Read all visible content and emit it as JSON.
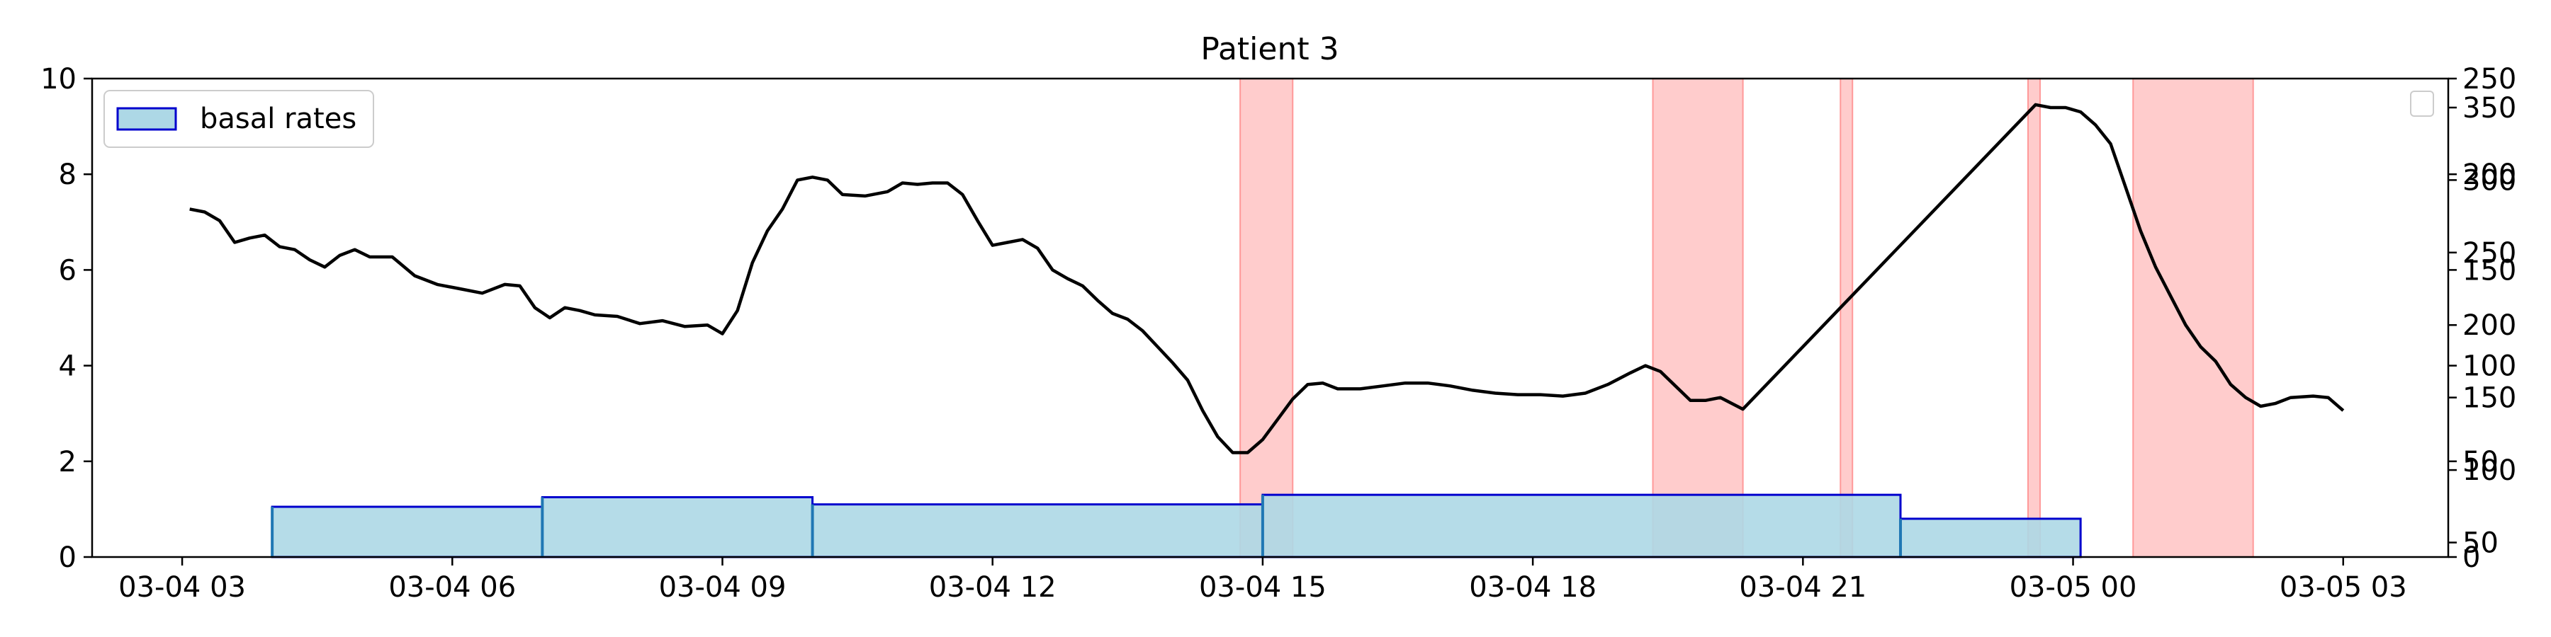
{
  "chart_data": {
    "type": "line",
    "title": "Patient 3",
    "x_range": [
      "2024-03-04 02:00",
      "2024-03-05 04:10"
    ],
    "x_ticks": [
      {
        "value": "2024-03-04 03:00",
        "label": "03-04 03"
      },
      {
        "value": "2024-03-04 06:00",
        "label": "03-04 06"
      },
      {
        "value": "2024-03-04 09:00",
        "label": "03-04 09"
      },
      {
        "value": "2024-03-04 12:00",
        "label": "03-04 12"
      },
      {
        "value": "2024-03-04 15:00",
        "label": "03-04 15"
      },
      {
        "value": "2024-03-04 18:00",
        "label": "03-04 18"
      },
      {
        "value": "2024-03-04 21:00",
        "label": "03-04 21"
      },
      {
        "value": "2024-03-05 00:00",
        "label": "03-05 00"
      },
      {
        "value": "2024-03-05 03:00",
        "label": "03-05 03"
      }
    ],
    "left_axis": {
      "ylim": [
        0,
        10
      ],
      "ticks": [
        "0",
        "2",
        "4",
        "6",
        "8",
        "10"
      ]
    },
    "right_axis_a": {
      "ylim": [
        0,
        250
      ],
      "ticks": [
        "0",
        "50",
        "100",
        "150",
        "200",
        "250"
      ]
    },
    "right_axis_b": {
      "ylim": [
        40,
        370
      ],
      "ticks": [
        "50",
        "100",
        "150",
        "200",
        "250",
        "300",
        "350"
      ]
    },
    "legend": {
      "placement": "upper-left",
      "entries": [
        "basal rates"
      ]
    },
    "empty_legend_placement": "upper-right",
    "colors": {
      "basal_fill": "#add8e6",
      "basal_edge": "#0000cd",
      "basal_step": "#1f77b4",
      "highlight": "#ff9999",
      "glucose": "#000000"
    },
    "basal_rates": [
      {
        "start": "2024-03-04 04:00",
        "end": "2024-03-04 07:00",
        "value": 1.05
      },
      {
        "start": "2024-03-04 07:00",
        "end": "2024-03-04 10:00",
        "value": 1.25
      },
      {
        "start": "2024-03-04 10:00",
        "end": "2024-03-04 15:00",
        "value": 1.1
      },
      {
        "start": "2024-03-04 15:00",
        "end": "2024-03-04 22:05",
        "value": 1.3
      },
      {
        "start": "2024-03-04 22:05",
        "end": "2024-03-05 00:05",
        "value": 0.8
      }
    ],
    "highlight_regions": [
      {
        "start": "2024-03-04 14:45",
        "end": "2024-03-04 15:20"
      },
      {
        "start": "2024-03-04 19:20",
        "end": "2024-03-04 20:20"
      },
      {
        "start": "2024-03-04 21:25",
        "end": "2024-03-04 21:33"
      },
      {
        "start": "2024-03-04 23:30",
        "end": "2024-03-04 23:38"
      },
      {
        "start": "2024-03-05 00:40",
        "end": "2024-03-05 02:00"
      }
    ],
    "glucose_series": {
      "points": [
        [
          "2024-03-04 03:05",
          280
        ],
        [
          "2024-03-04 03:15",
          278
        ],
        [
          "2024-03-04 03:25",
          272
        ],
        [
          "2024-03-04 03:35",
          257
        ],
        [
          "2024-03-04 03:45",
          260
        ],
        [
          "2024-03-04 03:55",
          262
        ],
        [
          "2024-03-04 04:05",
          254
        ],
        [
          "2024-03-04 04:15",
          252
        ],
        [
          "2024-03-04 04:25",
          245
        ],
        [
          "2024-03-04 04:35",
          240
        ],
        [
          "2024-03-04 04:45",
          248
        ],
        [
          "2024-03-04 04:55",
          252
        ],
        [
          "2024-03-04 05:05",
          247
        ],
        [
          "2024-03-04 05:20",
          247
        ],
        [
          "2024-03-04 05:35",
          234
        ],
        [
          "2024-03-04 05:50",
          228
        ],
        [
          "2024-03-04 06:05",
          225
        ],
        [
          "2024-03-04 06:20",
          222
        ],
        [
          "2024-03-04 06:35",
          228
        ],
        [
          "2024-03-04 06:45",
          227
        ],
        [
          "2024-03-04 06:55",
          212
        ],
        [
          "2024-03-04 07:05",
          205
        ],
        [
          "2024-03-04 07:15",
          212
        ],
        [
          "2024-03-04 07:25",
          210
        ],
        [
          "2024-03-04 07:35",
          207
        ],
        [
          "2024-03-04 07:50",
          206
        ],
        [
          "2024-03-04 08:05",
          201
        ],
        [
          "2024-03-04 08:20",
          203
        ],
        [
          "2024-03-04 08:35",
          199
        ],
        [
          "2024-03-04 08:50",
          200
        ],
        [
          "2024-03-04 09:00",
          194
        ],
        [
          "2024-03-04 09:10",
          210
        ],
        [
          "2024-03-04 09:20",
          243
        ],
        [
          "2024-03-04 09:30",
          265
        ],
        [
          "2024-03-04 09:40",
          280
        ],
        [
          "2024-03-04 09:50",
          300
        ],
        [
          "2024-03-04 10:00",
          302
        ],
        [
          "2024-03-04 10:10",
          300
        ],
        [
          "2024-03-04 10:20",
          290
        ],
        [
          "2024-03-04 10:35",
          289
        ],
        [
          "2024-03-04 10:50",
          292
        ],
        [
          "2024-03-04 11:00",
          298
        ],
        [
          "2024-03-04 11:10",
          297
        ],
        [
          "2024-03-04 11:20",
          298
        ],
        [
          "2024-03-04 11:30",
          298
        ],
        [
          "2024-03-04 11:40",
          290
        ],
        [
          "2024-03-04 11:50",
          272
        ],
        [
          "2024-03-04 12:00",
          255
        ],
        [
          "2024-03-04 12:10",
          257
        ],
        [
          "2024-03-04 12:20",
          259
        ],
        [
          "2024-03-04 12:30",
          253
        ],
        [
          "2024-03-04 12:40",
          238
        ],
        [
          "2024-03-04 12:50",
          232
        ],
        [
          "2024-03-04 13:00",
          227
        ],
        [
          "2024-03-04 13:10",
          217
        ],
        [
          "2024-03-04 13:20",
          208
        ],
        [
          "2024-03-04 13:30",
          204
        ],
        [
          "2024-03-04 13:40",
          196
        ],
        [
          "2024-03-04 13:50",
          185
        ],
        [
          "2024-03-04 14:00",
          174
        ],
        [
          "2024-03-04 14:10",
          162
        ],
        [
          "2024-03-04 14:20",
          141
        ],
        [
          "2024-03-04 14:30",
          123
        ],
        [
          "2024-03-04 14:40",
          112
        ],
        [
          "2024-03-04 14:50",
          112
        ],
        [
          "2024-03-04 15:00",
          121
        ],
        [
          "2024-03-04 15:10",
          135
        ],
        [
          "2024-03-04 15:20",
          149
        ],
        [
          "2024-03-04 15:30",
          159
        ],
        [
          "2024-03-04 15:40",
          160
        ],
        [
          "2024-03-04 15:50",
          156
        ],
        [
          "2024-03-04 16:05",
          156
        ],
        [
          "2024-03-04 16:20",
          158
        ],
        [
          "2024-03-04 16:35",
          160
        ],
        [
          "2024-03-04 16:50",
          160
        ],
        [
          "2024-03-04 17:05",
          158
        ],
        [
          "2024-03-04 17:20",
          155
        ],
        [
          "2024-03-04 17:35",
          153
        ],
        [
          "2024-03-04 17:50",
          152
        ],
        [
          "2024-03-04 18:05",
          152
        ],
        [
          "2024-03-04 18:20",
          151
        ],
        [
          "2024-03-04 18:35",
          153
        ],
        [
          "2024-03-04 18:50",
          159
        ],
        [
          "2024-03-04 19:05",
          167
        ],
        [
          "2024-03-04 19:15",
          172
        ],
        [
          "2024-03-04 19:25",
          168
        ],
        [
          "2024-03-04 19:35",
          158
        ],
        [
          "2024-03-04 19:45",
          148
        ],
        [
          "2024-03-04 19:55",
          148
        ],
        [
          "2024-03-04 20:05",
          150
        ],
        [
          "2024-03-04 20:20",
          142
        ],
        [
          "2024-03-04 23:35",
          352
        ],
        [
          "2024-03-04 23:45",
          350
        ],
        [
          "2024-03-04 23:55",
          350
        ],
        [
          "2024-03-05 00:05",
          347
        ],
        [
          "2024-03-05 00:15",
          338
        ],
        [
          "2024-03-05 00:25",
          325
        ],
        [
          "2024-03-05 00:35",
          295
        ],
        [
          "2024-03-05 00:45",
          265
        ],
        [
          "2024-03-05 00:55",
          240
        ],
        [
          "2024-03-05 01:05",
          220
        ],
        [
          "2024-03-05 01:15",
          200
        ],
        [
          "2024-03-05 01:25",
          185
        ],
        [
          "2024-03-05 01:35",
          175
        ],
        [
          "2024-03-05 01:45",
          159
        ],
        [
          "2024-03-05 01:55",
          150
        ],
        [
          "2024-03-05 02:05",
          144
        ],
        [
          "2024-03-05 02:15",
          146
        ],
        [
          "2024-03-05 02:25",
          150
        ],
        [
          "2024-03-05 02:40",
          151
        ],
        [
          "2024-03-05 02:50",
          150
        ],
        [
          "2024-03-05 03:00",
          141
        ]
      ]
    }
  }
}
